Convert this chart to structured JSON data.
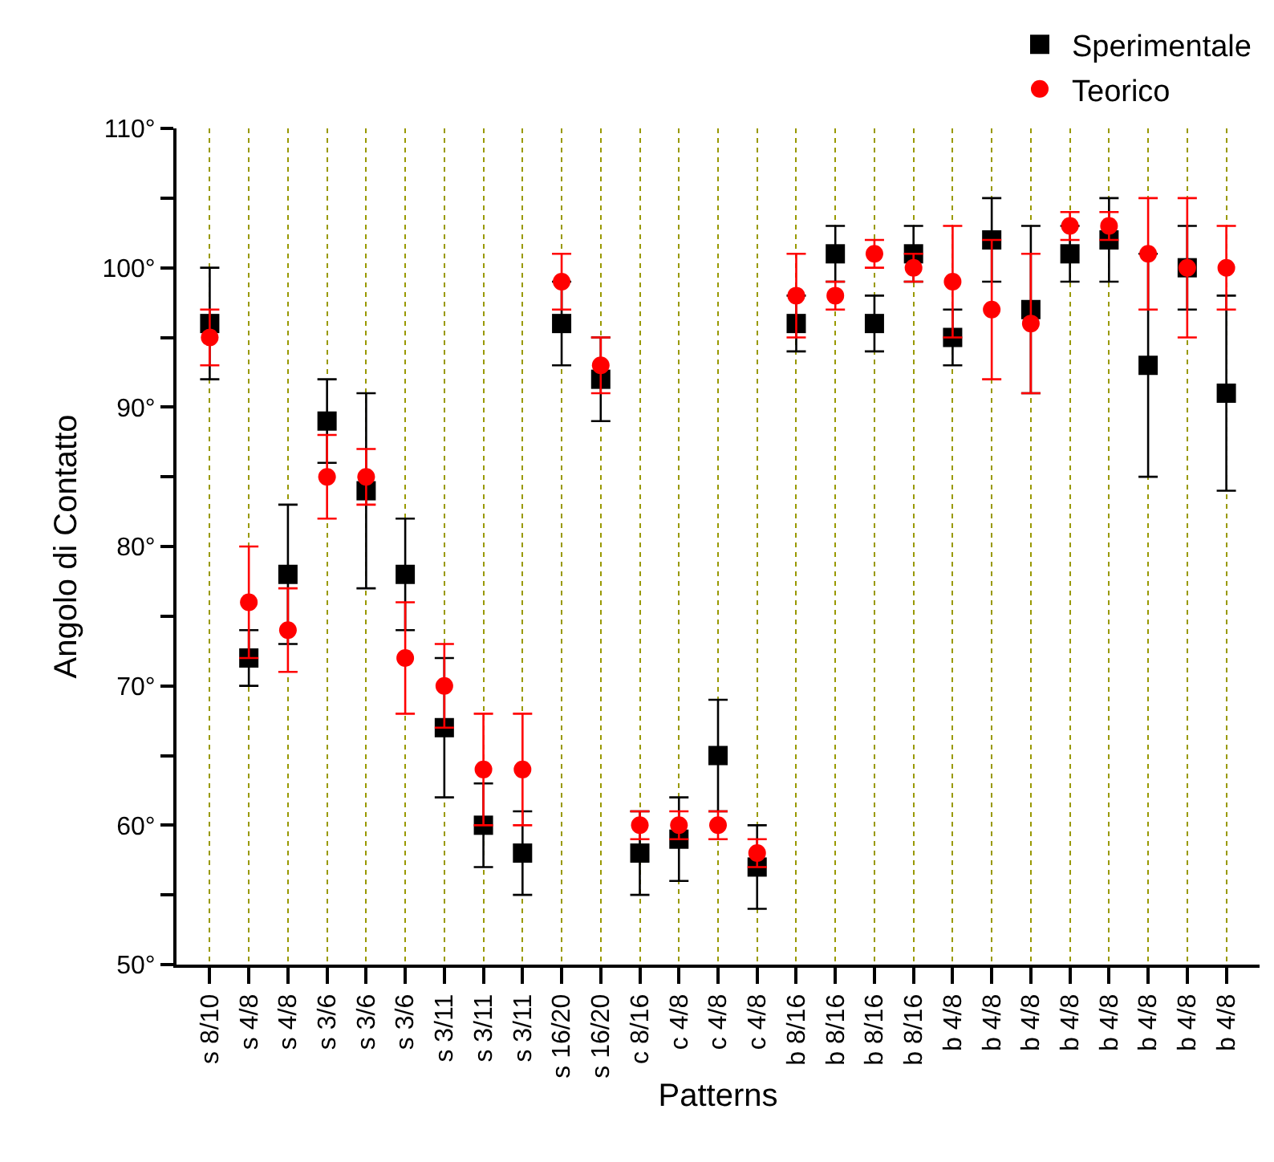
{
  "chart_data": {
    "type": "scatter",
    "xlabel": "Patterns",
    "ylabel": "Angolo di Contatto",
    "categories": [
      "s 8/10",
      "s 4/8",
      "s 4/8",
      "s 3/6",
      "s 3/6",
      "s 3/6",
      "s 3/11",
      "s 3/11",
      "s 3/11",
      "s 16/20",
      "s 16/20",
      "c 8/16",
      "c 4/8",
      "c 4/8",
      "c 4/8",
      "b 8/16",
      "b 8/16",
      "b 8/16",
      "b 8/16",
      "b 4/8",
      "b 4/8",
      "b 4/8",
      "b 4/8",
      "b 4/8",
      "b 4/8",
      "b 4/8",
      "b 4/8"
    ],
    "series": [
      {
        "name": "Sperimentale",
        "color": "#000000",
        "marker": "square",
        "values": [
          96,
          72,
          78,
          89,
          84,
          78,
          67,
          60,
          58,
          96,
          92,
          58,
          59,
          65,
          57,
          96,
          101,
          96,
          101,
          95,
          102,
          97,
          101,
          102,
          93,
          100,
          91
        ],
        "errors": [
          4,
          2,
          5,
          3,
          7,
          4,
          5,
          3,
          3,
          3,
          3,
          3,
          3,
          4,
          3,
          2,
          2,
          2,
          2,
          2,
          3,
          6,
          2,
          3,
          8,
          3,
          7
        ]
      },
      {
        "name": "Teorico",
        "color": "#ff0000",
        "marker": "circle",
        "values": [
          95,
          76,
          74,
          85,
          85,
          72,
          70,
          64,
          64,
          99,
          93,
          60,
          60,
          60,
          58,
          98,
          98,
          101,
          100,
          99,
          97,
          96,
          103,
          103,
          101,
          100,
          100
        ],
        "errors": [
          2,
          4,
          3,
          3,
          2,
          4,
          3,
          4,
          4,
          2,
          2,
          1,
          1,
          1,
          1,
          3,
          1,
          1,
          1,
          4,
          5,
          5,
          1,
          1,
          4,
          5,
          3
        ]
      }
    ],
    "ylim": [
      50,
      110
    ],
    "yticks": [
      {
        "value": 50,
        "label": "50°"
      },
      {
        "value": 55,
        "label": null
      },
      {
        "value": 60,
        "label": "60°"
      },
      {
        "value": 65,
        "label": null
      },
      {
        "value": 70,
        "label": "70°"
      },
      {
        "value": 75,
        "label": null
      },
      {
        "value": 80,
        "label": "80°"
      },
      {
        "value": 85,
        "label": null
      },
      {
        "value": 90,
        "label": "90°"
      },
      {
        "value": 95,
        "label": null
      },
      {
        "value": 100,
        "label": "100°"
      },
      {
        "value": 105,
        "label": null
      },
      {
        "value": 110,
        "label": "110°"
      }
    ],
    "grid": "x",
    "legend": "top right"
  }
}
